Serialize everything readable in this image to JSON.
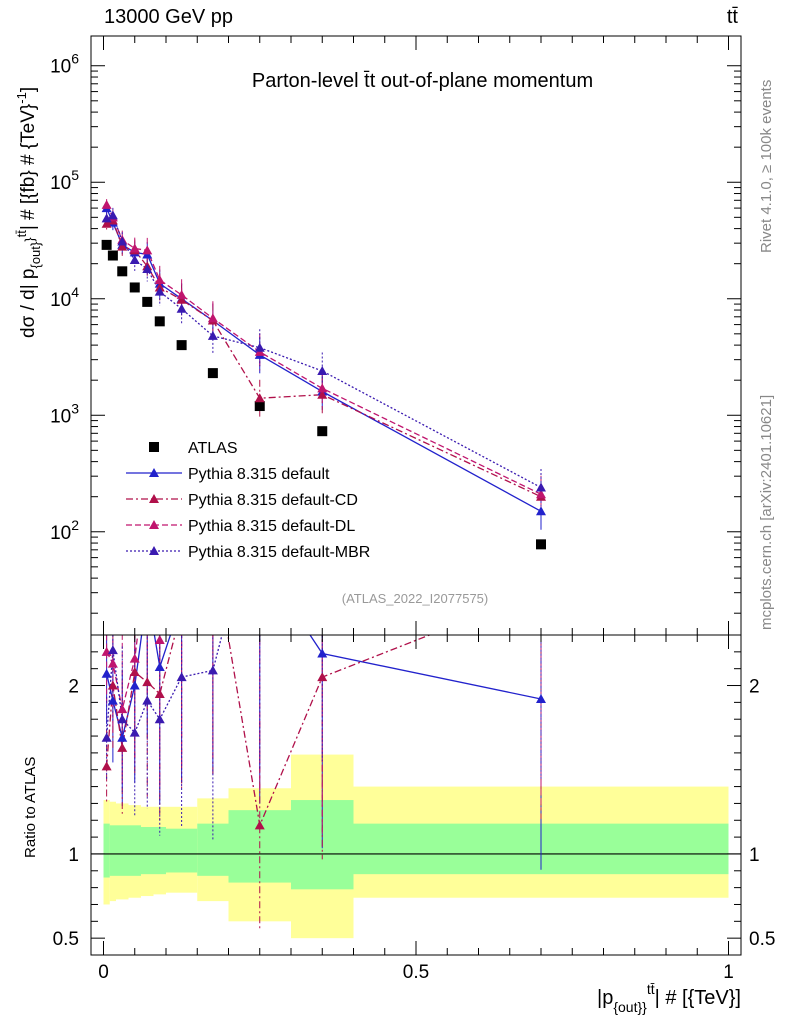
{
  "header": {
    "energy_label": "13000 GeV pp",
    "process_label": "tt̄"
  },
  "side_labels": {
    "rivet": "Rivet 4.1.0, ≥ 100k events",
    "mcplots": "mcplots.cern.ch [arXiv:2401.10621]"
  },
  "chart_data": {
    "type": "scatter",
    "title": "Parton-level t̄t out-of-plane momentum",
    "analysis_id": "(ATLAS_2022_I2077575)",
    "ylabel": "dσ / d| p{out}^tt̄| # [{fb} # {TeV}^-1]",
    "ylabel_parts": [
      "dσ / d| p",
      "{out}",
      "}",
      "tt̄",
      "| # [{fb} # {TeV}",
      "-1",
      "]"
    ],
    "xlabel_parts": [
      "|p",
      "{out}",
      "}",
      "tt̄",
      "| # [{TeV}]"
    ],
    "ratio_ylabel": "Ratio to ATLAS",
    "xlim": [
      -0.02,
      1.02
    ],
    "ylim": [
      13,
      1800000
    ],
    "yscale": "log",
    "ratio_ylim": [
      0.4,
      2.3
    ],
    "x_ticks": [
      {
        "value": 0,
        "label": "0"
      },
      {
        "value": 0.5,
        "label": "0.5"
      },
      {
        "value": 1,
        "label": "1"
      }
    ],
    "y_ticks": [
      {
        "value": 100,
        "base": "10",
        "exp": "2"
      },
      {
        "value": 1000,
        "base": "10",
        "exp": "3"
      },
      {
        "value": 10000,
        "base": "10",
        "exp": "4"
      },
      {
        "value": 100000,
        "base": "10",
        "exp": "5"
      },
      {
        "value": 1000000,
        "base": "10",
        "exp": "6"
      }
    ],
    "ratio_y_ticks": [
      {
        "value": 0.5,
        "label": "0.5"
      },
      {
        "value": 1,
        "label": "1"
      },
      {
        "value": 2,
        "label": "2"
      }
    ],
    "bins": [
      [
        0,
        0.01
      ],
      [
        0.01,
        0.02
      ],
      [
        0.02,
        0.04
      ],
      [
        0.04,
        0.06
      ],
      [
        0.06,
        0.08
      ],
      [
        0.08,
        0.1
      ],
      [
        0.1,
        0.15
      ],
      [
        0.15,
        0.2
      ],
      [
        0.2,
        0.3
      ],
      [
        0.3,
        0.4
      ],
      [
        0.4,
        1.0
      ]
    ],
    "band_outer": [
      [
        0.7,
        1.32
      ],
      [
        0.72,
        1.31
      ],
      [
        0.73,
        1.3
      ],
      [
        0.74,
        1.29
      ],
      [
        0.75,
        1.28
      ],
      [
        0.76,
        1.28
      ],
      [
        0.77,
        1.28
      ],
      [
        0.72,
        1.33
      ],
      [
        0.6,
        1.39
      ],
      [
        0.5,
        1.59
      ],
      [
        0.74,
        1.4
      ]
    ],
    "band_inner": [
      [
        0.86,
        1.18
      ],
      [
        0.87,
        1.17
      ],
      [
        0.87,
        1.17
      ],
      [
        0.87,
        1.17
      ],
      [
        0.88,
        1.16
      ],
      [
        0.88,
        1.16
      ],
      [
        0.89,
        1.15
      ],
      [
        0.87,
        1.18
      ],
      [
        0.83,
        1.26
      ],
      [
        0.79,
        1.32
      ],
      [
        0.88,
        1.18
      ]
    ],
    "series": [
      {
        "name": "ATLAS",
        "color": "#000000",
        "marker": "square",
        "style": "none",
        "x": [
          0.005,
          0.015,
          0.03,
          0.05,
          0.07,
          0.09,
          0.125,
          0.175,
          0.25,
          0.35,
          0.7
        ],
        "y": [
          29000,
          23500,
          17200,
          12500,
          9400,
          6400,
          4000,
          2300,
          1200,
          730,
          78
        ],
        "ratio": [
          1,
          1,
          1,
          1,
          1,
          1,
          1,
          1,
          1,
          1,
          1
        ]
      },
      {
        "name": "Pythia 8.315 default",
        "color": "#2222cc",
        "marker": "triangle",
        "style": "solid",
        "x": [
          0.005,
          0.015,
          0.03,
          0.05,
          0.07,
          0.09,
          0.125,
          0.175,
          0.25,
          0.35,
          0.7
        ],
        "y": [
          60000,
          45000,
          29000,
          25000,
          24000,
          13500,
          10000,
          6500,
          3300,
          1600,
          150
        ],
        "ratio": [
          2.07,
          1.91,
          1.69,
          2.0,
          2.55,
          2.11,
          2.5,
          2.83,
          2.75,
          2.19,
          1.92
        ]
      },
      {
        "name": "Pythia 8.315 default-CD",
        "color": "#b0104a",
        "marker": "triangle",
        "style": "dashdot",
        "x": [
          0.005,
          0.015,
          0.03,
          0.05,
          0.07,
          0.09,
          0.125,
          0.175,
          0.25,
          0.35,
          0.7
        ],
        "y": [
          44000,
          47000,
          28000,
          26000,
          19000,
          12500,
          9800,
          6500,
          1400,
          1500,
          200
        ],
        "ratio": [
          1.52,
          2.0,
          1.63,
          2.08,
          2.02,
          1.95,
          2.45,
          2.83,
          1.17,
          2.05,
          2.56
        ]
      },
      {
        "name": "Pythia 8.315 default-DL",
        "color": "#c0156e",
        "marker": "triangle",
        "style": "dashed",
        "x": [
          0.005,
          0.015,
          0.03,
          0.05,
          0.07,
          0.09,
          0.125,
          0.175,
          0.25,
          0.35,
          0.7
        ],
        "y": [
          64000,
          50000,
          32000,
          27000,
          26000,
          14500,
          10800,
          6800,
          3500,
          1700,
          210
        ],
        "ratio": [
          2.2,
          2.13,
          1.86,
          2.16,
          2.77,
          2.27,
          2.7,
          2.96,
          2.92,
          2.33,
          2.69
        ]
      },
      {
        "name": "Pythia 8.315 default-MBR",
        "color": "#3a1ab0",
        "marker": "triangle",
        "style": "dotted",
        "x": [
          0.005,
          0.015,
          0.03,
          0.05,
          0.07,
          0.09,
          0.125,
          0.175,
          0.25,
          0.35,
          0.7
        ],
        "y": [
          49000,
          52000,
          31000,
          21500,
          18000,
          11500,
          8200,
          4800,
          3800,
          2400,
          240
        ],
        "ratio": [
          1.69,
          2.21,
          1.8,
          1.72,
          1.91,
          1.8,
          2.05,
          2.09,
          3.17,
          3.29,
          3.08
        ]
      }
    ]
  }
}
